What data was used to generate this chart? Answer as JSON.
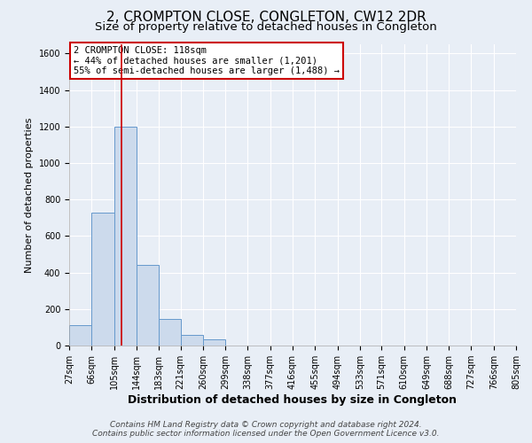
{
  "title": "2, CROMPTON CLOSE, CONGLETON, CW12 2DR",
  "subtitle": "Size of property relative to detached houses in Congleton",
  "xlabel": "Distribution of detached houses by size in Congleton",
  "ylabel": "Number of detached properties",
  "bar_color": "#ccdaec",
  "bar_edge_color": "#6699cc",
  "background_color": "#e8eef6",
  "plot_bg_color": "#e8eef6",
  "grid_color": "#ffffff",
  "bin_edges": [
    27,
    66,
    105,
    144,
    183,
    221,
    260,
    299,
    338,
    377,
    416,
    455,
    494,
    533,
    571,
    610,
    649,
    688,
    727,
    766,
    805
  ],
  "bin_labels": [
    "27sqm",
    "66sqm",
    "105sqm",
    "144sqm",
    "183sqm",
    "221sqm",
    "260sqm",
    "299sqm",
    "338sqm",
    "377sqm",
    "416sqm",
    "455sqm",
    "494sqm",
    "533sqm",
    "571sqm",
    "610sqm",
    "649sqm",
    "688sqm",
    "727sqm",
    "766sqm",
    "805sqm"
  ],
  "bar_heights": [
    110,
    730,
    1200,
    440,
    145,
    60,
    35,
    0,
    0,
    0,
    0,
    0,
    0,
    0,
    0,
    0,
    0,
    0,
    0,
    0
  ],
  "ylim": [
    0,
    1650
  ],
  "yticks": [
    0,
    200,
    400,
    600,
    800,
    1000,
    1200,
    1400,
    1600
  ],
  "vline_x": 118,
  "vline_color": "#cc0000",
  "annotation_line1": "2 CROMPTON CLOSE: 118sqm",
  "annotation_line2": "← 44% of detached houses are smaller (1,201)",
  "annotation_line3": "55% of semi-detached houses are larger (1,488) →",
  "footer1": "Contains HM Land Registry data © Crown copyright and database right 2024.",
  "footer2": "Contains public sector information licensed under the Open Government Licence v3.0.",
  "title_fontsize": 11,
  "subtitle_fontsize": 9.5,
  "xlabel_fontsize": 9,
  "ylabel_fontsize": 8,
  "tick_fontsize": 7,
  "annotation_fontsize": 7.5,
  "footer_fontsize": 6.5
}
